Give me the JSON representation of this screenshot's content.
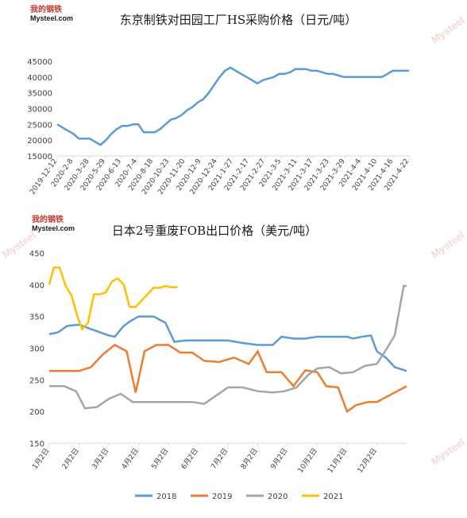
{
  "branding": {
    "logo_cn": "我的钢铁",
    "logo_en": "Mysteel.com",
    "watermark": "Mysteel"
  },
  "chart_data": [
    {
      "type": "line",
      "title": "东京制铁对田园工厂HS采购价格（日元/吨）",
      "xlabel": "",
      "ylabel": "",
      "ylim": [
        15000,
        45000
      ],
      "yticks": [
        15000,
        20000,
        25000,
        30000,
        35000,
        40000,
        45000
      ],
      "grid": false,
      "legend": "none",
      "x_tick_labels": [
        "2019-12-12",
        "2020-2-8",
        "2020-3-28",
        "2020-5-29",
        "2020-6-13",
        "2020-7-4",
        "2020-8-18",
        "2020-10-23",
        "2020-11-20",
        "2020-12-9",
        "2020-12-24",
        "2021-1-27",
        "2021-2-17",
        "2021-2-27",
        "2021-3-5",
        "2021-3-11",
        "2021-3-17",
        "2021-3-23",
        "2021-3-29",
        "2021-4-4",
        "2021-4-10",
        "2021-4-16",
        "2021-4-22"
      ],
      "series": [
        {
          "color": "#5b9bd5",
          "values": [
            25000,
            24000,
            23000,
            22000,
            20500,
            20500,
            20500,
            19500,
            18500,
            20000,
            22000,
            23500,
            24500,
            24500,
            25000,
            25000,
            22500,
            22500,
            22500,
            23500,
            25000,
            26500,
            27000,
            28000,
            29500,
            30500,
            32000,
            33000,
            35000,
            37500,
            40000,
            42000,
            43000,
            42000,
            41000,
            40000,
            39000,
            38000,
            39000,
            39500,
            40000,
            41000,
            41000,
            41500,
            42500,
            42500,
            42500,
            42000,
            42000,
            41500,
            41000,
            41000,
            40500,
            40000,
            40000,
            40000,
            40000,
            40000,
            40000,
            40000,
            40000,
            41000,
            42000,
            42000,
            42000,
            42000
          ]
        }
      ]
    },
    {
      "type": "line",
      "title": "日本2号重废FOB出口价格（美元/吨）",
      "xlabel": "",
      "ylabel": "",
      "ylim": [
        150,
        450
      ],
      "yticks": [
        150,
        200,
        250,
        300,
        350,
        400,
        450
      ],
      "grid": false,
      "legend": "bottom",
      "x_tick_labels": [
        "1月2日",
        "2月2日",
        "3月2日",
        "4月2日",
        "5月2日",
        "6月2日",
        "7月2日",
        "8月2日",
        "9月2日",
        "10月2日",
        "11月2日",
        "12月2日"
      ],
      "x_domain": [
        0,
        12
      ],
      "series": [
        {
          "name": "2018",
          "color": "#5b9bd5",
          "x": [
            0,
            0.3,
            0.6,
            1.0,
            1.4,
            1.7,
            2.0,
            2.2,
            2.5,
            2.7,
            3.0,
            3.5,
            3.9,
            4.2,
            4.6,
            5.0,
            5.5,
            6.0,
            6.5,
            7.0,
            7.5,
            7.8,
            8.2,
            8.6,
            9.0,
            9.5,
            10.0,
            10.2,
            10.5,
            10.8,
            11.0,
            11.3,
            11.6,
            12.0
          ],
          "values": [
            322,
            325,
            335,
            337,
            330,
            325,
            320,
            318,
            335,
            342,
            350,
            350,
            340,
            310,
            312,
            312,
            312,
            312,
            308,
            305,
            305,
            318,
            315,
            315,
            318,
            318,
            318,
            315,
            318,
            320,
            295,
            285,
            270,
            264
          ]
        },
        {
          "name": "2019",
          "color": "#ed7d31",
          "x": [
            0,
            0.5,
            1.0,
            1.4,
            1.8,
            2.2,
            2.6,
            2.9,
            3.2,
            3.6,
            4.0,
            4.4,
            4.8,
            5.2,
            5.7,
            6.2,
            6.7,
            7.0,
            7.3,
            7.8,
            8.2,
            8.6,
            9.0,
            9.3,
            9.7,
            10.0,
            10.3,
            10.7,
            11.0,
            11.4,
            11.8,
            12.0
          ],
          "values": [
            264,
            264,
            264,
            270,
            290,
            305,
            295,
            230,
            295,
            305,
            305,
            293,
            293,
            280,
            278,
            285,
            275,
            295,
            262,
            262,
            240,
            265,
            262,
            240,
            238,
            200,
            210,
            215,
            215,
            225,
            235,
            240
          ]
        },
        {
          "name": "2020",
          "color": "#a5a5a5",
          "x": [
            0,
            0.5,
            0.9,
            1.2,
            1.6,
            2.0,
            2.4,
            2.8,
            3.3,
            3.8,
            4.3,
            4.8,
            5.2,
            5.6,
            6.0,
            6.5,
            7.0,
            7.5,
            7.9,
            8.3,
            8.7,
            9.0,
            9.4,
            9.8,
            10.2,
            10.6,
            11.0,
            11.3,
            11.6,
            11.9,
            12.0
          ],
          "values": [
            240,
            240,
            232,
            205,
            207,
            220,
            228,
            215,
            215,
            215,
            215,
            215,
            212,
            225,
            238,
            238,
            232,
            230,
            232,
            238,
            258,
            268,
            270,
            260,
            262,
            272,
            275,
            297,
            320,
            398,
            398
          ]
        },
        {
          "name": "2021",
          "color": "#ffc000",
          "x": [
            0,
            0.15,
            0.35,
            0.55,
            0.75,
            0.95,
            1.1,
            1.3,
            1.5,
            1.7,
            1.9,
            2.1,
            2.3,
            2.5,
            2.7,
            2.9,
            3.1,
            3.3,
            3.5,
            3.7,
            3.9,
            4.1,
            4.3
          ],
          "values": [
            400,
            427,
            427,
            398,
            383,
            350,
            330,
            340,
            385,
            385,
            388,
            405,
            410,
            400,
            365,
            365,
            375,
            385,
            395,
            395,
            398,
            396,
            396
          ]
        }
      ]
    }
  ]
}
